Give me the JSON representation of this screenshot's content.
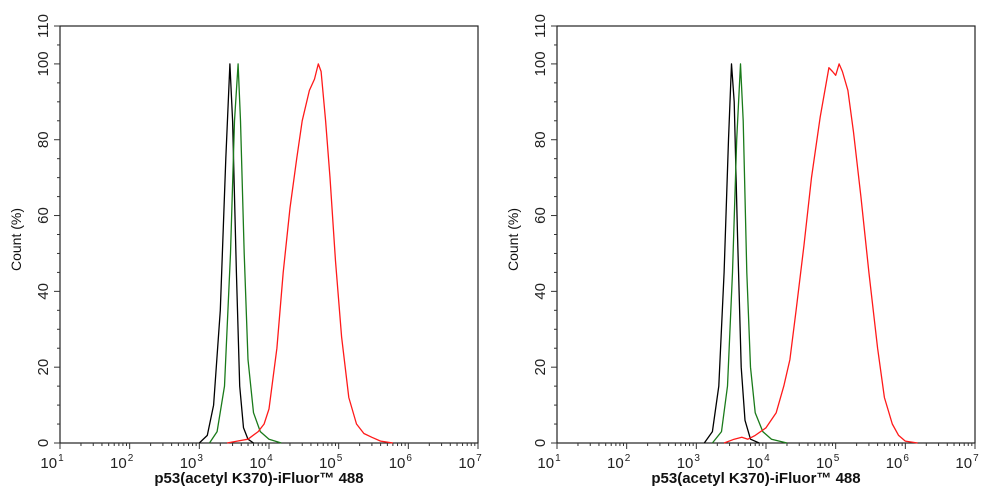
{
  "chart_data": [
    {
      "type": "line",
      "xlabel": "p53(acetyl K370)-iFluor™ 488",
      "ylabel": "Count  (%)",
      "xscale": "log",
      "xlim": [
        10,
        10000000
      ],
      "ylim": [
        0,
        110
      ],
      "x_tick_labels": [
        "10^1",
        "10^2",
        "10^3",
        "10^4",
        "10^5",
        "10^6",
        "10^7"
      ],
      "y_tick_labels": [
        "0",
        "20",
        "40",
        "60",
        "80",
        "100",
        "110"
      ],
      "grid": false,
      "series": [
        {
          "color": "#000000",
          "points": [
            [
              1000,
              0
            ],
            [
              1300,
              2
            ],
            [
              1600,
              10
            ],
            [
              2000,
              35
            ],
            [
              2400,
              75
            ],
            [
              2750,
              100
            ],
            [
              3000,
              85
            ],
            [
              3400,
              45
            ],
            [
              3800,
              15
            ],
            [
              4300,
              4
            ],
            [
              5000,
              1
            ],
            [
              6000,
              0
            ]
          ]
        },
        {
          "color": "#1a7a1a",
          "points": [
            [
              1400,
              0
            ],
            [
              1800,
              3
            ],
            [
              2300,
              15
            ],
            [
              2800,
              50
            ],
            [
              3200,
              85
            ],
            [
              3600,
              100
            ],
            [
              3900,
              85
            ],
            [
              4400,
              50
            ],
            [
              5000,
              22
            ],
            [
              6000,
              8
            ],
            [
              7500,
              3
            ],
            [
              10000,
              1
            ],
            [
              15000,
              0
            ]
          ]
        },
        {
          "color": "#ff1a1a",
          "points": [
            [
              2500,
              0
            ],
            [
              3500,
              0.5
            ],
            [
              5000,
              1
            ],
            [
              7000,
              3
            ],
            [
              8500,
              5
            ],
            [
              10000,
              9
            ],
            [
              13000,
              25
            ],
            [
              16000,
              45
            ],
            [
              20000,
              62
            ],
            [
              25000,
              75
            ],
            [
              30000,
              85
            ],
            [
              38000,
              93
            ],
            [
              45000,
              96
            ],
            [
              51000,
              100
            ],
            [
              56000,
              98
            ],
            [
              65000,
              85
            ],
            [
              75000,
              70
            ],
            [
              90000,
              48
            ],
            [
              110000,
              28
            ],
            [
              140000,
              12
            ],
            [
              180000,
              5
            ],
            [
              230000,
              2.5
            ],
            [
              300000,
              1.5
            ],
            [
              400000,
              0.5
            ],
            [
              600000,
              0
            ]
          ]
        }
      ]
    },
    {
      "type": "line",
      "xlabel": "p53(acetyl K370)-iFluor™ 488",
      "ylabel": "Count  (%)",
      "xscale": "log",
      "xlim": [
        10,
        10000000
      ],
      "ylim": [
        0,
        110
      ],
      "x_tick_labels": [
        "10^1",
        "10^2",
        "10^3",
        "10^4",
        "10^5",
        "10^6",
        "10^7"
      ],
      "y_tick_labels": [
        "0",
        "20",
        "40",
        "60",
        "80",
        "100",
        "110"
      ],
      "grid": false,
      "series": [
        {
          "color": "#000000",
          "points": [
            [
              1300,
              0
            ],
            [
              1700,
              3
            ],
            [
              2100,
              15
            ],
            [
              2500,
              45
            ],
            [
              2900,
              80
            ],
            [
              3200,
              100
            ],
            [
              3500,
              90
            ],
            [
              3900,
              55
            ],
            [
              4400,
              20
            ],
            [
              5000,
              6
            ],
            [
              6000,
              1
            ],
            [
              8000,
              0
            ]
          ]
        },
        {
          "color": "#1a7a1a",
          "points": [
            [
              1700,
              0
            ],
            [
              2300,
              3
            ],
            [
              2800,
              15
            ],
            [
              3300,
              45
            ],
            [
              3800,
              80
            ],
            [
              4300,
              100
            ],
            [
              4700,
              85
            ],
            [
              5300,
              45
            ],
            [
              6000,
              20
            ],
            [
              7000,
              8
            ],
            [
              9000,
              3
            ],
            [
              12000,
              1
            ],
            [
              20000,
              0
            ]
          ]
        },
        {
          "color": "#ff1a1a",
          "points": [
            [
              2500,
              0
            ],
            [
              3500,
              1
            ],
            [
              4500,
              1.5
            ],
            [
              5500,
              1
            ],
            [
              7000,
              2
            ],
            [
              10000,
              4
            ],
            [
              14000,
              8
            ],
            [
              18000,
              15
            ],
            [
              22000,
              22
            ],
            [
              27000,
              35
            ],
            [
              35000,
              52
            ],
            [
              45000,
              70
            ],
            [
              60000,
              86
            ],
            [
              80000,
              99
            ],
            [
              90000,
              98
            ],
            [
              100000,
              97
            ],
            [
              112000,
              100
            ],
            [
              125000,
              98
            ],
            [
              150000,
              93
            ],
            [
              180000,
              82
            ],
            [
              230000,
              65
            ],
            [
              300000,
              45
            ],
            [
              400000,
              25
            ],
            [
              500000,
              12
            ],
            [
              650000,
              5
            ],
            [
              800000,
              2
            ],
            [
              1000000,
              0.5
            ],
            [
              1500000,
              0
            ]
          ]
        }
      ]
    }
  ]
}
